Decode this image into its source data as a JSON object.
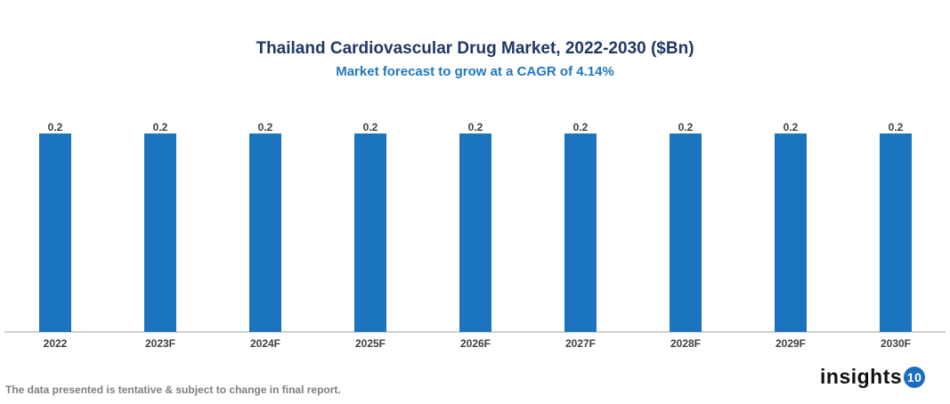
{
  "chart_data": {
    "type": "bar",
    "title": "Thailand Cardiovascular Drug Market, 2022-2030 ($Bn)",
    "subtitle": "Market forecast to grow at a CAGR of 4.14%",
    "categories": [
      "2022",
      "2023F",
      "2024F",
      "2025F",
      "2026F",
      "2027F",
      "2028F",
      "2029F",
      "2030F"
    ],
    "values": [
      0.2,
      0.2,
      0.2,
      0.2,
      0.2,
      0.2,
      0.2,
      0.2,
      0.2
    ],
    "data_labels": [
      "0.2",
      "0.2",
      "0.2",
      "0.2",
      "0.2",
      "0.2",
      "0.2",
      "0.2",
      "0.2"
    ],
    "xlabel": "",
    "ylabel": "",
    "ylim": [
      0,
      0.2
    ],
    "grid": false,
    "bar_color": "#1a74be"
  },
  "footer": {
    "note": "The data presented is tentative & subject to change in final report."
  },
  "logo": {
    "text": "insights",
    "badge": "10"
  }
}
